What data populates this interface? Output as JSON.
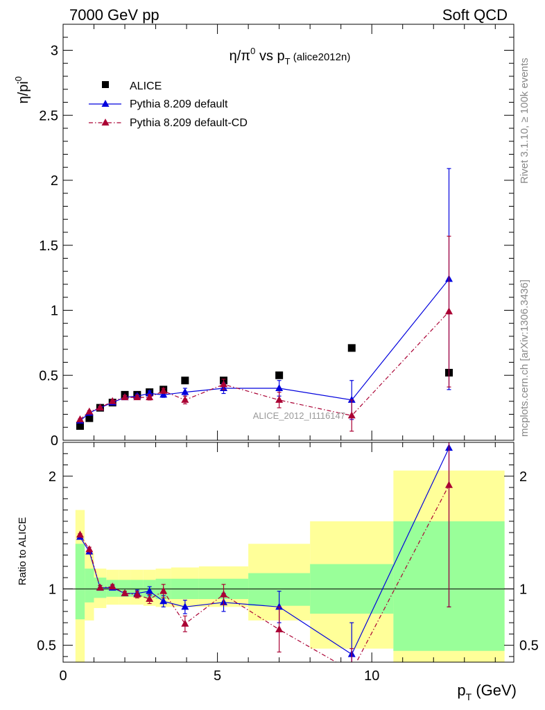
{
  "header": {
    "left": "7000 GeV pp",
    "right": "Soft QCD"
  },
  "side_labels": {
    "rivet": "Rivet 3.1.10, ≥ 100k events",
    "mcplots": "mcplots.cern.ch [arXiv:1306.3436]"
  },
  "watermark": "ALICE_2012_I1116147",
  "colors": {
    "data": "#000000",
    "default": "#0000dd",
    "cd": "#aa0033",
    "band_inner": "#99ff99",
    "band_outer": "#ffff99"
  },
  "chart_data": [
    {
      "type": "scatter",
      "panel": "main",
      "title_main": "η/π",
      "title_sup": "0",
      "title_mid": " vs p",
      "title_sub": "T",
      "title_tag": " (alice2012n)",
      "ylabel_main": "η/pi",
      "ylabel_sup": "0",
      "xlim": [
        0,
        14.6
      ],
      "ylim": [
        0,
        3.2
      ],
      "yticks": [
        0,
        0.5,
        1,
        1.5,
        2,
        2.5,
        3
      ],
      "ytick_labels": [
        "0",
        "0.5",
        "1",
        "1.5",
        "2",
        "2.5",
        "3"
      ],
      "legend_position": "top-left",
      "series": [
        {
          "name": "ALICE",
          "style": "markers",
          "x": [
            0.55,
            0.85,
            1.2,
            1.6,
            2.0,
            2.4,
            2.8,
            3.25,
            3.95,
            5.2,
            7.0,
            9.35,
            12.5
          ],
          "y": [
            0.11,
            0.17,
            0.25,
            0.29,
            0.35,
            0.35,
            0.37,
            0.39,
            0.46,
            0.46,
            0.5,
            0.71,
            0.52
          ]
        },
        {
          "name": "Pythia 8.209 default",
          "style": "solid",
          "x": [
            0.55,
            0.85,
            1.2,
            1.6,
            2.0,
            2.4,
            2.8,
            3.25,
            3.95,
            5.2,
            7.0,
            9.35,
            12.5
          ],
          "y": [
            0.15,
            0.21,
            0.25,
            0.29,
            0.33,
            0.34,
            0.36,
            0.35,
            0.37,
            0.4,
            0.4,
            0.31,
            1.24
          ],
          "yerr": [
            0.005,
            0.008,
            0.01,
            0.01,
            0.015,
            0.015,
            0.02,
            0.02,
            0.03,
            0.04,
            0.06,
            0.15,
            0.85
          ]
        },
        {
          "name": "Pythia 8.209 default-CD",
          "style": "dashdot",
          "x": [
            0.55,
            0.85,
            1.2,
            1.6,
            2.0,
            2.4,
            2.8,
            3.25,
            3.95,
            5.2,
            7.0,
            9.35,
            12.5
          ],
          "y": [
            0.16,
            0.22,
            0.25,
            0.3,
            0.33,
            0.33,
            0.33,
            0.38,
            0.31,
            0.43,
            0.31,
            0.19,
            0.99
          ],
          "yerr": [
            0.005,
            0.008,
            0.01,
            0.01,
            0.015,
            0.015,
            0.02,
            0.02,
            0.03,
            0.04,
            0.06,
            0.12,
            0.58
          ]
        }
      ]
    },
    {
      "type": "scatter",
      "panel": "ratio",
      "ylabel": "Ratio to ALICE",
      "xlabel_main": "p",
      "xlabel_sub": "T",
      "xlabel_unit": " (GeV)",
      "xlim": [
        0,
        14.6
      ],
      "ylim": [
        0.35,
        2.3
      ],
      "xticks": [
        0,
        5,
        10
      ],
      "xtick_labels": [
        "0",
        "5",
        "10"
      ],
      "yticks": [
        0.5,
        1,
        2
      ],
      "ytick_labels": [
        "0.5",
        "1",
        "2"
      ],
      "bands": {
        "x_low": [
          0.4,
          0.7,
          1.0,
          1.4,
          1.8,
          2.2,
          2.6,
          3.0,
          3.5,
          4.4,
          6.0,
          8.0,
          10.7
        ],
        "x_high": [
          0.7,
          1.0,
          1.4,
          1.8,
          2.2,
          2.6,
          3.0,
          3.5,
          4.4,
          6.0,
          8.0,
          10.7,
          14.3
        ],
        "inner_low": [
          0.73,
          0.88,
          0.92,
          0.93,
          0.93,
          0.93,
          0.92,
          0.91,
          0.91,
          0.91,
          0.85,
          0.78,
          0.45
        ],
        "inner_high": [
          1.4,
          1.18,
          1.1,
          1.08,
          1.08,
          1.08,
          1.08,
          1.09,
          1.09,
          1.09,
          1.14,
          1.22,
          1.6
        ],
        "outer_low": [
          0.33,
          0.72,
          0.83,
          0.86,
          0.86,
          0.86,
          0.85,
          0.84,
          0.84,
          0.84,
          0.72,
          0.47,
          0.33
        ],
        "outer_high": [
          1.7,
          1.32,
          1.18,
          1.17,
          1.17,
          1.17,
          1.17,
          1.18,
          1.19,
          1.2,
          1.4,
          1.6,
          2.05
        ]
      },
      "series": [
        {
          "name": "Pythia 8.209 default",
          "style": "solid",
          "x": [
            0.55,
            0.85,
            1.2,
            1.6,
            2.0,
            2.4,
            2.8,
            3.25,
            3.95,
            5.2,
            7.0,
            9.35,
            12.5
          ],
          "y": [
            1.46,
            1.33,
            1.01,
            1.01,
            0.96,
            0.96,
            0.98,
            0.89,
            0.84,
            0.88,
            0.84,
            0.42,
            2.25
          ],
          "yerr": [
            0.01,
            0.02,
            0.02,
            0.02,
            0.02,
            0.03,
            0.04,
            0.05,
            0.06,
            0.08,
            0.14,
            0.28,
            1.41
          ]
        },
        {
          "name": "Pythia 8.209 default-CD",
          "style": "dashdot",
          "x": [
            0.55,
            0.85,
            1.2,
            1.6,
            2.0,
            2.4,
            2.8,
            3.25,
            3.95,
            5.2,
            7.0,
            9.35,
            12.5
          ],
          "y": [
            1.48,
            1.35,
            1.01,
            1.02,
            0.96,
            0.95,
            0.91,
            0.98,
            0.69,
            0.95,
            0.64,
            0.27,
            1.92
          ],
          "yerr": [
            0.01,
            0.02,
            0.02,
            0.02,
            0.02,
            0.03,
            0.04,
            0.06,
            0.07,
            0.09,
            0.2,
            0.2,
            1.08
          ]
        }
      ]
    }
  ]
}
